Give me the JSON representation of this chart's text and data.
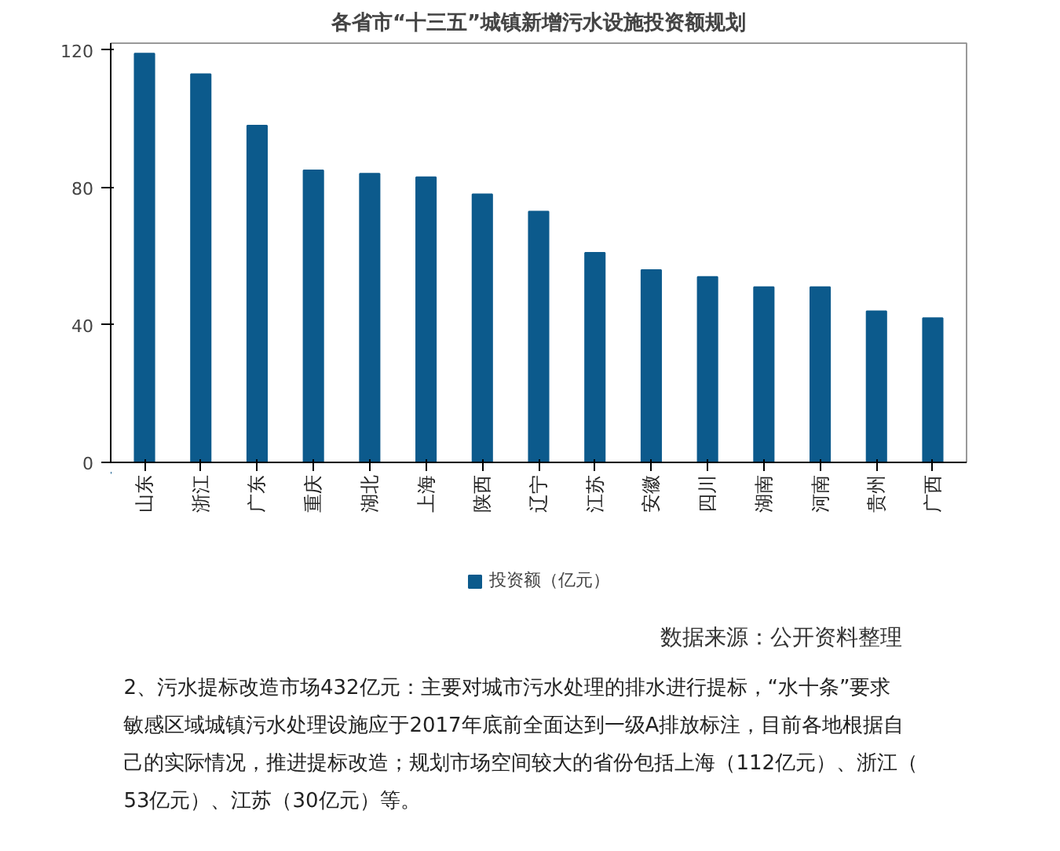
{
  "chart_data": {
    "type": "bar",
    "title": "各省市“十三五”城镇新增污水设施投资额规划",
    "categories": [
      "山东",
      "浙江",
      "广东",
      "重庆",
      "湖北",
      "上海",
      "陕西",
      "辽宁",
      "江苏",
      "安徽",
      "四川",
      "湖南",
      "河南",
      "贵州",
      "广西"
    ],
    "series": [
      {
        "name": "投资额（亿元）",
        "color": "#0c5a8c",
        "values": [
          119,
          113,
          98,
          85,
          84,
          83,
          78,
          73,
          61,
          56,
          54,
          51,
          51,
          44,
          42
        ]
      }
    ],
    "ylim": [
      0,
      122
    ],
    "yticks": [
      0,
      40,
      80,
      120
    ],
    "grid": false,
    "legend": "bottom",
    "annotations": [
      "数据来源：公开资料整理",
      "2、污水提标改造市场432亿元：主要对城市污水处理的排水进行提标，“水十条”要求敏感区域城镇污水处理设施应于2017年底前全面达到一级A排放标注，目前各地根据自己的实际情况，推进提标改造；规划市场空间较大的省份包括上海（112亿元）、浙江（53亿元）、江苏（30亿元）等。"
    ]
  }
}
